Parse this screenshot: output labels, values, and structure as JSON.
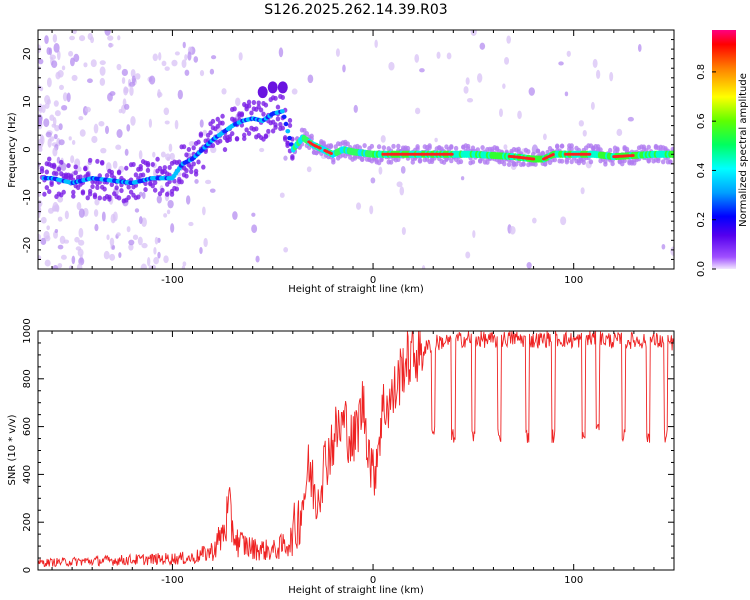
{
  "title": "S126.2025.262.14.39.R03",
  "chart_data": [
    {
      "type": "heatmap",
      "name": "spectrogram",
      "xlabel": "Height of straight line (km)",
      "ylabel": "Frequency (Hz)",
      "xlim": [
        -167,
        150
      ],
      "ylim": [
        -25,
        25
      ],
      "xticks": [
        -100,
        0,
        100
      ],
      "yticks": [
        -20,
        -10,
        0,
        10,
        20
      ],
      "colorbar": {
        "label": "Normalized spectral amplitude",
        "range": [
          0,
          0.97
        ],
        "ticks": [
          0.0,
          0.2,
          0.4,
          0.6,
          0.8
        ]
      },
      "ridge": {
        "x": [
          -160,
          -150,
          -140,
          -130,
          -120,
          -110,
          -100,
          -95,
          -90,
          -85,
          -80,
          -75,
          -70,
          -65,
          -60,
          -55,
          -50,
          -45,
          -42,
          -40,
          -38,
          -35,
          -30,
          -25,
          -20,
          -15,
          -10,
          0,
          20,
          50,
          70,
          80,
          85,
          90,
          100,
          110,
          120,
          140,
          150
        ],
        "freq": [
          -6,
          -7,
          -6,
          -6.5,
          -7,
          -6,
          -6,
          -3,
          -2,
          0,
          2,
          3.5,
          5,
          6,
          6.5,
          6,
          7.5,
          8,
          3,
          0,
          1,
          2.5,
          1,
          0,
          -1,
          0,
          -0.5,
          -1,
          -1,
          -1,
          -1.5,
          -2,
          -2,
          -1,
          -1,
          -1,
          -1.5,
          -1,
          -1
        ]
      },
      "side_bands": {
        "x": [
          -55,
          -50,
          -45
        ],
        "freq": [
          12,
          13,
          13
        ]
      }
    },
    {
      "type": "line",
      "name": "snr",
      "xlabel": "Height of straight line (km)",
      "ylabel": "SNR (10 * v/v)",
      "xlim": [
        -167,
        150
      ],
      "ylim": [
        0,
        1000
      ],
      "xticks": [
        -100,
        0,
        100
      ],
      "yticks": [
        0,
        200,
        400,
        600,
        800,
        1000
      ],
      "series": [
        {
          "name": "SNR",
          "color": "#ee2222",
          "x": [
            -167,
            -150,
            -130,
            -110,
            -90,
            -80,
            -75,
            -72,
            -68,
            -60,
            -50,
            -45,
            -40,
            -36,
            -32,
            -28,
            -25,
            -22,
            -18,
            -14,
            -10,
            -5,
            0,
            5,
            10,
            15,
            20,
            25,
            30,
            40,
            50,
            60,
            70,
            80,
            90,
            100,
            110,
            120,
            130,
            140,
            150
          ],
          "values": [
            30,
            35,
            40,
            45,
            50,
            80,
            150,
            240,
            120,
            90,
            80,
            100,
            130,
            250,
            420,
            300,
            420,
            500,
            580,
            620,
            520,
            700,
            380,
            680,
            720,
            860,
            900,
            920,
            950,
            960,
            970,
            960,
            970,
            960,
            970,
            960,
            970,
            960,
            960,
            960,
            950
          ]
        }
      ],
      "dropouts": {
        "x": [
          30,
          40,
          50,
          63,
          77,
          90,
          105,
          112,
          125,
          137,
          146
        ],
        "values": [
          580,
          560,
          560,
          560,
          560,
          560,
          560,
          600,
          560,
          560,
          560
        ]
      }
    }
  ]
}
